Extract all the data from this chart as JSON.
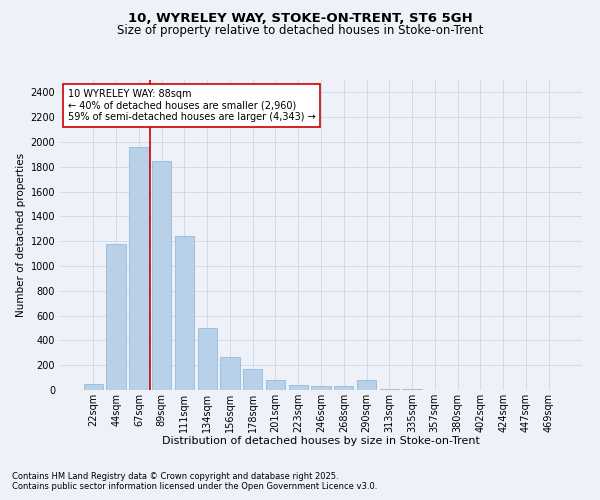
{
  "title1": "10, WYRELEY WAY, STOKE-ON-TRENT, ST6 5GH",
  "title2": "Size of property relative to detached houses in Stoke-on-Trent",
  "xlabel": "Distribution of detached houses by size in Stoke-on-Trent",
  "ylabel": "Number of detached properties",
  "categories": [
    "22sqm",
    "44sqm",
    "67sqm",
    "89sqm",
    "111sqm",
    "134sqm",
    "156sqm",
    "178sqm",
    "201sqm",
    "223sqm",
    "246sqm",
    "268sqm",
    "290sqm",
    "313sqm",
    "335sqm",
    "357sqm",
    "380sqm",
    "402sqm",
    "424sqm",
    "447sqm",
    "469sqm"
  ],
  "values": [
    50,
    1180,
    1960,
    1850,
    1240,
    500,
    270,
    170,
    80,
    40,
    35,
    30,
    80,
    10,
    5,
    3,
    2,
    1,
    1,
    1,
    1
  ],
  "bar_color": "#b8d0e8",
  "bar_edge_color": "#8ab4d4",
  "vline_color": "#cc0000",
  "annotation_text": "10 WYRELEY WAY: 88sqm\n← 40% of detached houses are smaller (2,960)\n59% of semi-detached houses are larger (4,343) →",
  "annotation_box_color": "#ffffff",
  "annotation_box_edge": "#cc0000",
  "footnote1": "Contains HM Land Registry data © Crown copyright and database right 2025.",
  "footnote2": "Contains public sector information licensed under the Open Government Licence v3.0.",
  "bg_color": "#eef2f8",
  "ylim": [
    0,
    2500
  ],
  "yticks": [
    0,
    200,
    400,
    600,
    800,
    1000,
    1200,
    1400,
    1600,
    1800,
    2000,
    2200,
    2400
  ],
  "title1_fontsize": 9.5,
  "title2_fontsize": 8.5,
  "xlabel_fontsize": 8,
  "ylabel_fontsize": 7.5,
  "tick_fontsize": 7,
  "annot_fontsize": 7,
  "footnote_fontsize": 6
}
